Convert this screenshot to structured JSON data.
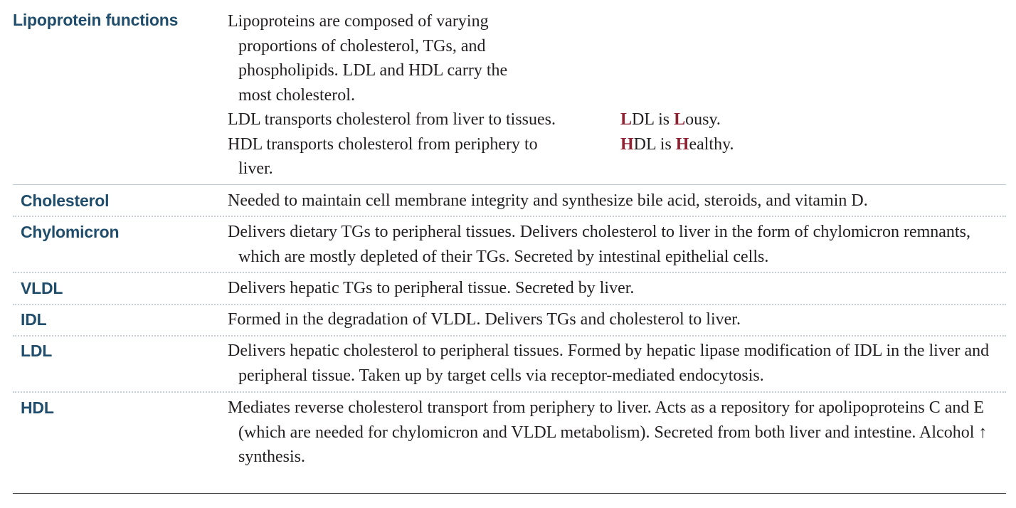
{
  "header": {
    "title": "Lipoprotein functions",
    "intro_lines": [
      "Lipoproteins are composed of varying",
      "proportions of cholesterol, TGs, and",
      "phospholipids. LDL and HDL carry the",
      "most cholesterol.",
      "LDL transports cholesterol from liver to tissues.",
      "HDL transports cholesterol from periphery to",
      "liver."
    ],
    "mnemonics": [
      {
        "first": "L",
        "mid": "DL is ",
        "second": "L",
        "rest": "ousy."
      },
      {
        "first": "H",
        "mid": "DL is ",
        "second": "H",
        "rest": "ealthy."
      }
    ],
    "accent_color": "#8e2232",
    "heading_color": "#1f4d6b"
  },
  "rows": [
    {
      "term": "Cholesterol",
      "description": "Needed to maintain cell membrane integrity and synthesize bile acid, steroids, and vitamin D."
    },
    {
      "term": "Chylomicron",
      "description": "Delivers dietary TGs to peripheral tissues. Delivers cholesterol to liver in the form of chylomicron remnants, which are mostly depleted of their TGs. Secreted by intestinal epithelial cells."
    },
    {
      "term": "VLDL",
      "description": "Delivers hepatic TGs to peripheral tissue. Secreted by liver."
    },
    {
      "term": "IDL",
      "description": "Formed in the degradation of VLDL. Delivers TGs and cholesterol to liver."
    },
    {
      "term": "LDL",
      "description": "Delivers hepatic cholesterol to peripheral tissues. Formed by hepatic lipase modification of IDL in the liver and peripheral tissue. Taken up by target cells via receptor-mediated endocytosis."
    },
    {
      "term": "HDL",
      "description": "Mediates reverse cholesterol transport from periphery to liver. Acts as a repository for apolipoproteins C and E (which are needed for chylomicron and VLDL metabolism). Secreted from both liver and intestine. Alcohol ↑ synthesis."
    }
  ]
}
